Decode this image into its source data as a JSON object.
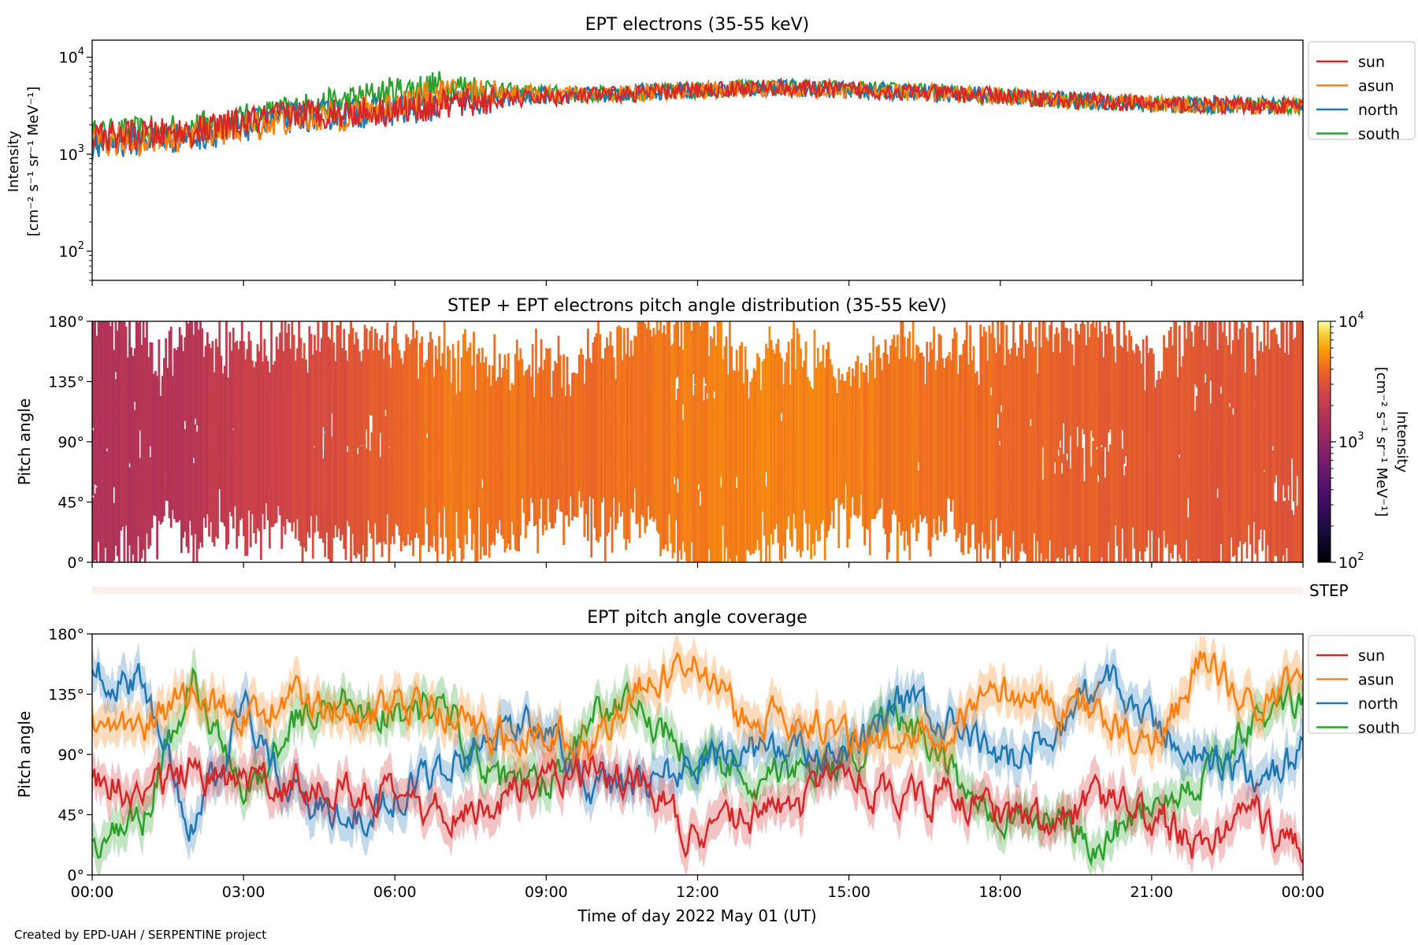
{
  "figure": {
    "credit": "Created by EPD-UAH / SERPENTINE project",
    "xlabel": "Time of day 2022 May 01 (UT)",
    "time_ticks": [
      "00:00",
      "03:00",
      "06:00",
      "09:00",
      "12:00",
      "15:00",
      "18:00",
      "21:00",
      "00:00"
    ]
  },
  "colors": {
    "sun": "#d62728",
    "asun": "#ff7f0e",
    "north": "#1f77b4",
    "south": "#2ca02c"
  },
  "chart_data": [
    {
      "type": "line",
      "title": "EPT electrons (35-55 keV)",
      "ylabel_line1": "Intensity",
      "ylabel_line2": "[cm⁻² s⁻¹ sr⁻¹ MeV⁻¹]",
      "yscale": "log",
      "ylim": [
        50,
        15000
      ],
      "xlim_hours": [
        0,
        24
      ],
      "y_ticks": [
        {
          "base": "10",
          "exp": "2",
          "v": 100
        },
        {
          "base": "10",
          "exp": "3",
          "v": 1000
        },
        {
          "base": "10",
          "exp": "4",
          "v": 10000
        }
      ],
      "legend_placement": "outside-right-top",
      "x": [
        0,
        1,
        2,
        3,
        4,
        5,
        6,
        7,
        8,
        9,
        10,
        11,
        12,
        13,
        14,
        15,
        16,
        17,
        18,
        19,
        20,
        21,
        22,
        23,
        24
      ],
      "series": [
        {
          "name": "sun",
          "values": [
            1500,
            1600,
            1700,
            2100,
            2600,
            2700,
            2800,
            3300,
            3600,
            3900,
            4000,
            4300,
            4600,
            4800,
            4800,
            4600,
            4400,
            4200,
            4000,
            3700,
            3500,
            3300,
            3200,
            3200,
            3100
          ]
        },
        {
          "name": "asun",
          "values": [
            1300,
            1400,
            1600,
            1900,
            2300,
            2500,
            3300,
            4200,
            4400,
            4200,
            4100,
            4300,
            4600,
            4700,
            4700,
            4600,
            4400,
            4200,
            4000,
            3700,
            3500,
            3300,
            3200,
            3200,
            3100
          ]
        },
        {
          "name": "north",
          "values": [
            1200,
            1400,
            1500,
            1900,
            2400,
            2600,
            2800,
            3200,
            3700,
            4000,
            4100,
            4400,
            4700,
            4800,
            4800,
            4600,
            4400,
            4200,
            4000,
            3700,
            3500,
            3300,
            3200,
            3200,
            3100
          ]
        },
        {
          "name": "south",
          "values": [
            1600,
            1700,
            1900,
            2300,
            2900,
            3500,
            4500,
            5200,
            4500,
            4200,
            4100,
            4300,
            4600,
            4800,
            4800,
            4700,
            4500,
            4300,
            4000,
            3700,
            3500,
            3300,
            3200,
            3200,
            3100
          ]
        }
      ]
    },
    {
      "type": "heatmap",
      "title": "STEP + EPT electrons pitch angle distribution (35-55 keV)",
      "ylabel": "Pitch angle",
      "y_ticks": [
        "0°",
        "45°",
        "90°",
        "135°",
        "180°"
      ],
      "ylim": [
        0,
        180
      ],
      "xlim_hours": [
        0,
        24
      ],
      "colorbar": {
        "label_line1": "Intensity",
        "label_line2": "[cm⁻² s⁻¹ sr⁻¹ MeV⁻¹]",
        "scale": "log",
        "range": [
          100,
          10000
        ],
        "ticks": [
          {
            "base": "10",
            "exp": "2"
          },
          {
            "base": "10",
            "exp": "3"
          },
          {
            "base": "10",
            "exp": "4"
          }
        ],
        "colormap": "inferno"
      },
      "intensity_by_hour": [
        1600,
        1700,
        1800,
        2200,
        2600,
        2900,
        3700,
        4400,
        4300,
        4100,
        4100,
        4300,
        4600,
        4800,
        4800,
        4600,
        4400,
        4200,
        4000,
        3700,
        3500,
        3300,
        3200,
        3200,
        3100
      ]
    },
    {
      "type": "line",
      "title": "",
      "ylabel": "",
      "side_label": "STEP"
    },
    {
      "type": "line",
      "title": "EPT pitch angle coverage",
      "ylabel": "Pitch angle",
      "y_ticks": [
        "0°",
        "45°",
        "90°",
        "135°",
        "180°"
      ],
      "ylim": [
        0,
        180
      ],
      "xlim_hours": [
        0,
        24
      ],
      "legend_placement": "outside-right-top",
      "shaded_uncertainty": true,
      "x": [
        0,
        1,
        2,
        3,
        4,
        5,
        6,
        7,
        8,
        9,
        10,
        11,
        12,
        13,
        14,
        15,
        16,
        17,
        18,
        19,
        20,
        21,
        22,
        23,
        24
      ],
      "series": [
        {
          "name": "sun",
          "values": [
            75,
            60,
            80,
            65,
            70,
            65,
            55,
            45,
            55,
            75,
            80,
            70,
            20,
            45,
            50,
            75,
            55,
            60,
            45,
            40,
            55,
            45,
            20,
            50,
            15
          ]
        },
        {
          "name": "asun",
          "values": [
            115,
            110,
            135,
            120,
            130,
            125,
            125,
            120,
            100,
            110,
            95,
            145,
            160,
            110,
            120,
            100,
            95,
            115,
            135,
            130,
            120,
            95,
            160,
            125,
            150
          ]
        },
        {
          "name": "north",
          "values": [
            155,
            140,
            35,
            125,
            60,
            40,
            60,
            80,
            110,
            110,
            60,
            70,
            85,
            95,
            90,
            85,
            130,
            110,
            85,
            100,
            150,
            110,
            90,
            70,
            90
          ]
        },
        {
          "name": "south",
          "values": [
            20,
            40,
            145,
            55,
            115,
            130,
            120,
            125,
            65,
            70,
            125,
            120,
            90,
            75,
            75,
            90,
            115,
            75,
            50,
            40,
            25,
            55,
            75,
            110,
            130
          ]
        }
      ]
    }
  ]
}
